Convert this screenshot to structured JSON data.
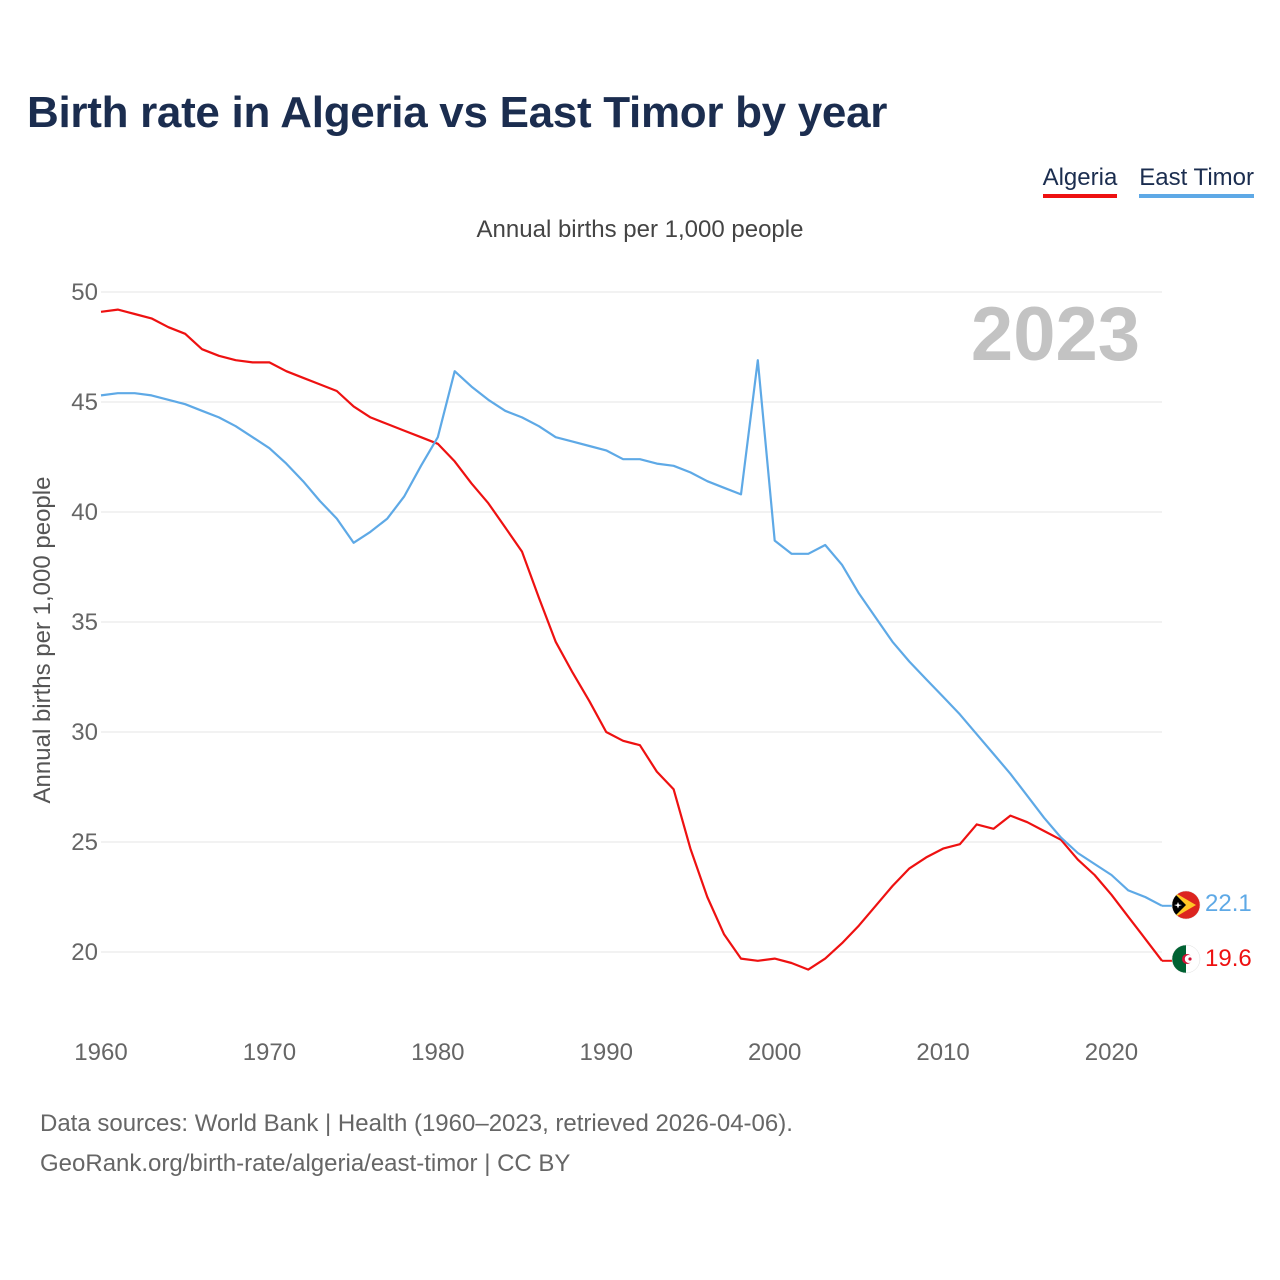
{
  "title": "Birth rate in Algeria vs East Timor by year",
  "subtitle": "Annual births per 1,000 people",
  "legend": {
    "algeria": "Algeria",
    "east_timor": "East Timor"
  },
  "year_watermark": "2023",
  "colors": {
    "algeria": "#ee1111",
    "east_timor": "#5ea9e6",
    "title": "#1b2d4f",
    "grid": "#e6e6e6",
    "watermark": "#c3c3c3"
  },
  "end_labels": {
    "algeria": "19.6",
    "east_timor": "22.1"
  },
  "source": {
    "line1": "Data sources: World Bank | Health (1960–2023, retrieved 2026-04-06).",
    "line2": "GeoRank.org/birth-rate/algeria/east-timor | CC BY"
  },
  "chart_data": {
    "type": "line",
    "title": "Birth rate in Algeria vs East Timor by year",
    "ylabel": "Annual births per 1,000 people",
    "xlabel": "",
    "xlim": [
      1960,
      2023
    ],
    "ylim": [
      17,
      50
    ],
    "x_ticks": [
      1960,
      1970,
      1980,
      1990,
      2000,
      2010,
      2020
    ],
    "y_ticks": [
      20,
      25,
      30,
      35,
      40,
      45,
      50
    ],
    "grid": "horizontal",
    "legend": "top-right",
    "x": [
      1960,
      1961,
      1962,
      1963,
      1964,
      1965,
      1966,
      1967,
      1968,
      1969,
      1970,
      1971,
      1972,
      1973,
      1974,
      1975,
      1976,
      1977,
      1978,
      1979,
      1980,
      1981,
      1982,
      1983,
      1984,
      1985,
      1986,
      1987,
      1988,
      1989,
      1990,
      1991,
      1992,
      1993,
      1994,
      1995,
      1996,
      1997,
      1998,
      1999,
      2000,
      2001,
      2002,
      2003,
      2004,
      2005,
      2006,
      2007,
      2008,
      2009,
      2010,
      2011,
      2012,
      2013,
      2014,
      2015,
      2016,
      2017,
      2018,
      2019,
      2020,
      2021,
      2022,
      2023
    ],
    "series": [
      {
        "name": "Algeria",
        "color": "#ee1111",
        "values": [
          49.1,
          49.2,
          49.0,
          48.8,
          48.4,
          48.1,
          47.4,
          47.1,
          46.9,
          46.8,
          46.8,
          46.4,
          46.1,
          45.8,
          45.5,
          44.8,
          44.3,
          44.0,
          43.7,
          43.4,
          43.1,
          42.3,
          41.3,
          40.4,
          39.3,
          38.2,
          36.1,
          34.1,
          32.7,
          31.4,
          30.0,
          29.6,
          29.4,
          28.2,
          27.4,
          24.7,
          22.5,
          20.8,
          19.7,
          19.6,
          19.7,
          19.5,
          19.2,
          19.7,
          20.4,
          21.2,
          22.1,
          23.0,
          23.8,
          24.3,
          24.7,
          24.9,
          25.8,
          25.6,
          26.2,
          25.9,
          25.5,
          25.1,
          24.2,
          23.5,
          22.6,
          21.6,
          20.6,
          19.6
        ]
      },
      {
        "name": "East Timor",
        "color": "#5ea9e6",
        "values": [
          45.3,
          45.4,
          45.4,
          45.3,
          45.1,
          44.9,
          44.6,
          44.3,
          43.9,
          43.4,
          42.9,
          42.2,
          41.4,
          40.5,
          39.7,
          38.6,
          39.1,
          39.7,
          40.7,
          42.1,
          43.4,
          46.4,
          45.7,
          45.1,
          44.6,
          44.3,
          43.9,
          43.4,
          43.2,
          43.0,
          42.8,
          42.4,
          42.4,
          42.2,
          42.1,
          41.8,
          41.4,
          41.1,
          40.8,
          46.9,
          38.7,
          38.1,
          38.1,
          38.5,
          37.6,
          36.3,
          35.2,
          34.1,
          33.2,
          32.4,
          31.6,
          30.8,
          29.9,
          29.0,
          28.1,
          27.1,
          26.1,
          25.2,
          24.5,
          24.0,
          23.5,
          22.8,
          22.5,
          22.1
        ]
      }
    ]
  }
}
